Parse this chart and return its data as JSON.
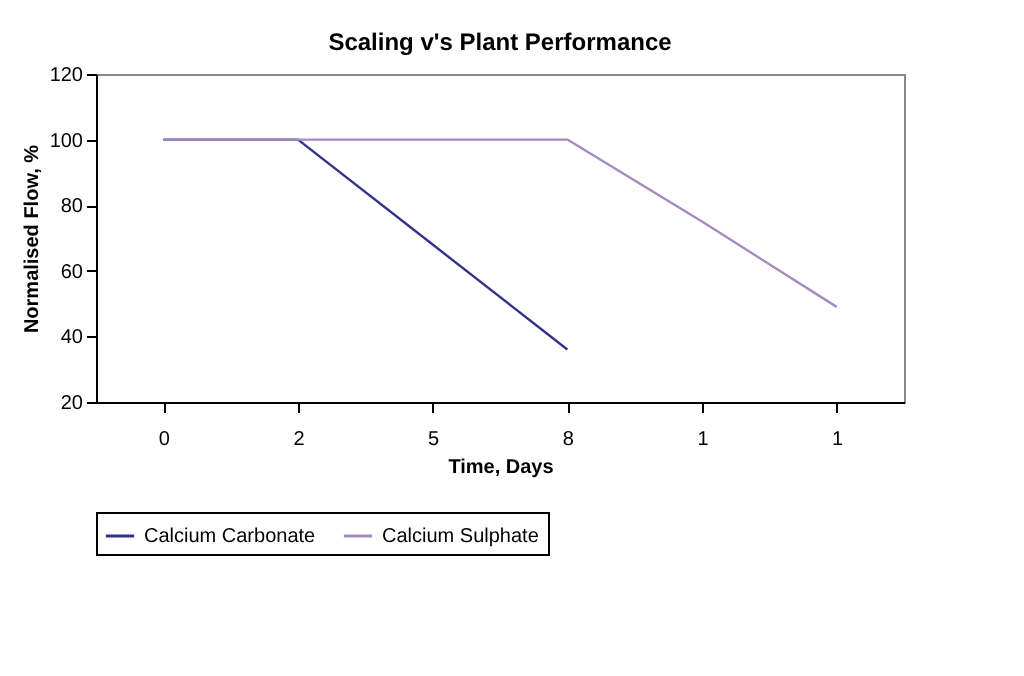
{
  "chart_data": {
    "type": "line",
    "title": "Scaling v's Plant Performance",
    "xlabel": "Time, Days",
    "ylabel": "Normalised Flow, %",
    "categories": [
      "0",
      "2",
      "5",
      "8",
      "1",
      "1"
    ],
    "series": [
      {
        "name": "Calcium Carbonate",
        "color": "#333388",
        "values": [
          100,
          100,
          68,
          36,
          null,
          null
        ]
      },
      {
        "name": "Calcium Sulphate",
        "color": "#a58bc0",
        "values": [
          100,
          100,
          100,
          100,
          75,
          49
        ]
      }
    ],
    "ylim": [
      20,
      120
    ],
    "yticks": [
      20,
      40,
      60,
      80,
      100,
      120
    ],
    "grid": false,
    "legend": "bottom",
    "marker": "none",
    "line_style": "solid"
  }
}
